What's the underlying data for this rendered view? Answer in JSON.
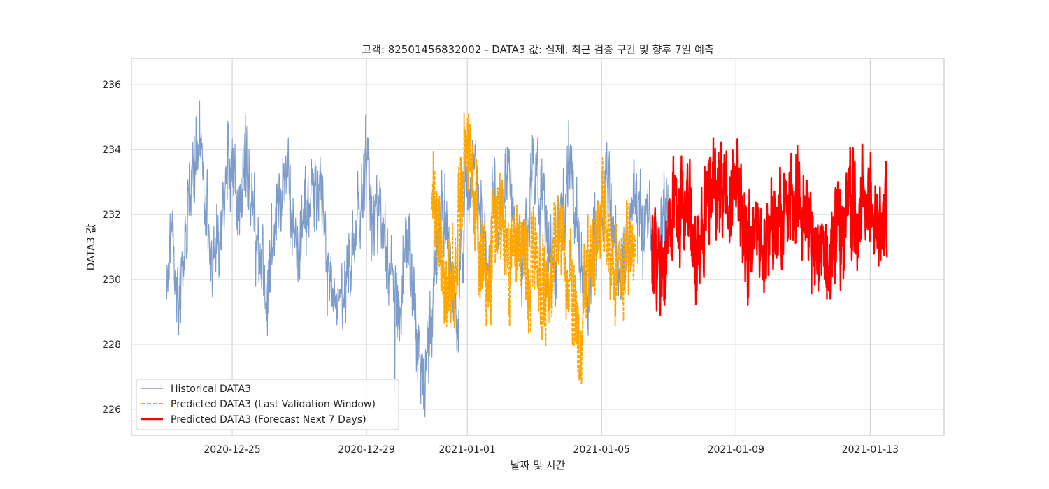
{
  "chart_data": {
    "type": "line",
    "title": "고객: 82501456832002 - DATA3 값: 실제, 최근 검증 구간 및 향후 7일 예측",
    "xlabel": "날짜 및 시간",
    "ylabel": "DATA3 값",
    "x_start": "2020-12-22",
    "xlim": [
      0.0,
      24.2
    ],
    "ylim": [
      225.2,
      236.8
    ],
    "x_ticks": [
      {
        "label": "2020-12-25",
        "x": 3.0
      },
      {
        "label": "2020-12-29",
        "x": 7.0
      },
      {
        "label": "2021-01-01",
        "x": 10.0
      },
      {
        "label": "2021-01-05",
        "x": 14.0
      },
      {
        "label": "2021-01-09",
        "x": 18.0
      },
      {
        "label": "2021-01-13",
        "x": 22.0
      }
    ],
    "y_ticks": [
      {
        "label": "226",
        "y": 226
      },
      {
        "label": "228",
        "y": 228
      },
      {
        "label": "230",
        "y": 230
      },
      {
        "label": "232",
        "y": 232
      },
      {
        "label": "234",
        "y": 234
      },
      {
        "label": "236",
        "y": 236
      }
    ],
    "grid": true,
    "legend_position": "lower-left",
    "series": [
      {
        "name": "Historical DATA3",
        "color": "#7d9cc9",
        "style": "solid",
        "x_range": [
          1.05,
          16.0
        ],
        "keypoints": [
          [
            1.05,
            229.5
          ],
          [
            1.2,
            232.0
          ],
          [
            1.4,
            229.0
          ],
          [
            1.6,
            231.0
          ],
          [
            1.85,
            233.5
          ],
          [
            2.0,
            234.5
          ],
          [
            2.2,
            232.5
          ],
          [
            2.4,
            230.5
          ],
          [
            2.6,
            231.5
          ],
          [
            2.8,
            233.0
          ],
          [
            3.0,
            234.0
          ],
          [
            3.2,
            232.0
          ],
          [
            3.4,
            233.5
          ],
          [
            3.6,
            232.5
          ],
          [
            3.8,
            231.0
          ],
          [
            4.0,
            229.5
          ],
          [
            4.2,
            231.0
          ],
          [
            4.4,
            232.5
          ],
          [
            4.6,
            233.5
          ],
          [
            4.8,
            232.0
          ],
          [
            5.0,
            231.0
          ],
          [
            5.2,
            232.0
          ],
          [
            5.4,
            233.0
          ],
          [
            5.6,
            232.5
          ],
          [
            5.9,
            230.0
          ],
          [
            6.2,
            229.0
          ],
          [
            6.5,
            230.5
          ],
          [
            6.8,
            232.0
          ],
          [
            7.0,
            233.5
          ],
          [
            7.2,
            232.0
          ],
          [
            7.5,
            231.5
          ],
          [
            7.8,
            230.0
          ],
          [
            8.0,
            229.0
          ],
          [
            8.2,
            231.0
          ],
          [
            8.5,
            228.5
          ],
          [
            8.7,
            227.0
          ],
          [
            8.9,
            228.5
          ],
          [
            9.1,
            231.0
          ],
          [
            9.3,
            232.5
          ],
          [
            9.5,
            230.0
          ],
          [
            9.7,
            228.5
          ],
          [
            9.85,
            231.0
          ],
          [
            10.0,
            233.0
          ],
          [
            10.2,
            234.0
          ],
          [
            10.4,
            231.5
          ],
          [
            10.6,
            230.5
          ],
          [
            10.8,
            232.5
          ],
          [
            11.0,
            232.0
          ],
          [
            11.2,
            233.5
          ],
          [
            11.4,
            232.0
          ],
          [
            11.6,
            230.5
          ],
          [
            11.8,
            232.0
          ],
          [
            12.0,
            233.5
          ],
          [
            12.2,
            232.5
          ],
          [
            12.4,
            231.5
          ],
          [
            12.6,
            230.5
          ],
          [
            12.8,
            232.0
          ],
          [
            13.0,
            233.5
          ],
          [
            13.2,
            232.5
          ],
          [
            13.4,
            230.0
          ],
          [
            13.6,
            229.5
          ],
          [
            13.8,
            231.0
          ],
          [
            14.0,
            232.0
          ],
          [
            14.2,
            233.0
          ],
          [
            14.4,
            231.0
          ],
          [
            14.6,
            230.0
          ],
          [
            14.8,
            231.5
          ],
          [
            15.0,
            232.5
          ],
          [
            15.2,
            231.5
          ],
          [
            15.4,
            232.0
          ],
          [
            15.6,
            230.5
          ],
          [
            15.8,
            232.0
          ],
          [
            16.0,
            232.0
          ]
        ],
        "amplitude": 1.35,
        "stroke_width": 1.2,
        "samples": 1800
      },
      {
        "name": "Predicted DATA3 (Last Validation Window)",
        "color": "#ffa500",
        "style": "dashed",
        "x_range": [
          8.95,
          15.0
        ],
        "keypoints": [
          [
            8.95,
            232.5
          ],
          [
            9.1,
            231.5
          ],
          [
            9.3,
            230.0
          ],
          [
            9.5,
            229.5
          ],
          [
            9.7,
            231.0
          ],
          [
            9.85,
            233.0
          ],
          [
            10.0,
            234.0
          ],
          [
            10.2,
            232.5
          ],
          [
            10.4,
            230.5
          ],
          [
            10.6,
            229.0
          ],
          [
            10.8,
            231.5
          ],
          [
            11.0,
            232.0
          ],
          [
            11.2,
            230.5
          ],
          [
            11.4,
            231.5
          ],
          [
            11.6,
            231.0
          ],
          [
            11.8,
            230.5
          ],
          [
            12.0,
            231.0
          ],
          [
            12.2,
            230.0
          ],
          [
            12.4,
            229.5
          ],
          [
            12.6,
            231.0
          ],
          [
            12.8,
            232.0
          ],
          [
            13.0,
            230.0
          ],
          [
            13.2,
            229.0
          ],
          [
            13.4,
            228.0
          ],
          [
            13.6,
            230.5
          ],
          [
            13.8,
            231.0
          ],
          [
            14.0,
            232.0
          ],
          [
            14.2,
            231.0
          ],
          [
            14.4,
            230.0
          ],
          [
            14.6,
            230.5
          ],
          [
            14.8,
            231.0
          ],
          [
            15.0,
            230.5
          ]
        ],
        "amplitude": 1.6,
        "stroke_width": 1.8,
        "samples": 900
      },
      {
        "name": "Predicted DATA3 (Forecast Next 7 Days)",
        "color": "#ff0000",
        "style": "solid",
        "x_range": [
          15.5,
          22.5
        ],
        "keypoints": [
          [
            15.5,
            231.0
          ],
          [
            15.8,
            230.5
          ],
          [
            16.0,
            231.5
          ],
          [
            16.2,
            232.5
          ],
          [
            16.4,
            231.5
          ],
          [
            16.6,
            232.5
          ],
          [
            16.8,
            230.5
          ],
          [
            17.0,
            231.5
          ],
          [
            17.2,
            233.0
          ],
          [
            17.4,
            232.5
          ],
          [
            17.6,
            233.0
          ],
          [
            17.8,
            232.0
          ],
          [
            18.0,
            233.5
          ],
          [
            18.2,
            232.0
          ],
          [
            18.4,
            231.0
          ],
          [
            18.6,
            231.5
          ],
          [
            18.8,
            231.0
          ],
          [
            19.0,
            232.0
          ],
          [
            19.2,
            231.5
          ],
          [
            19.4,
            232.5
          ],
          [
            19.6,
            232.0
          ],
          [
            19.8,
            233.0
          ],
          [
            20.0,
            232.0
          ],
          [
            20.2,
            231.5
          ],
          [
            20.4,
            230.5
          ],
          [
            20.6,
            231.0
          ],
          [
            20.8,
            230.5
          ],
          [
            21.0,
            232.0
          ],
          [
            21.2,
            231.5
          ],
          [
            21.4,
            232.5
          ],
          [
            21.6,
            231.5
          ],
          [
            21.8,
            232.0
          ],
          [
            22.0,
            232.5
          ],
          [
            22.2,
            231.5
          ],
          [
            22.5,
            232.0
          ]
        ],
        "amplitude": 1.55,
        "stroke_width": 2.4,
        "samples": 900
      }
    ]
  }
}
